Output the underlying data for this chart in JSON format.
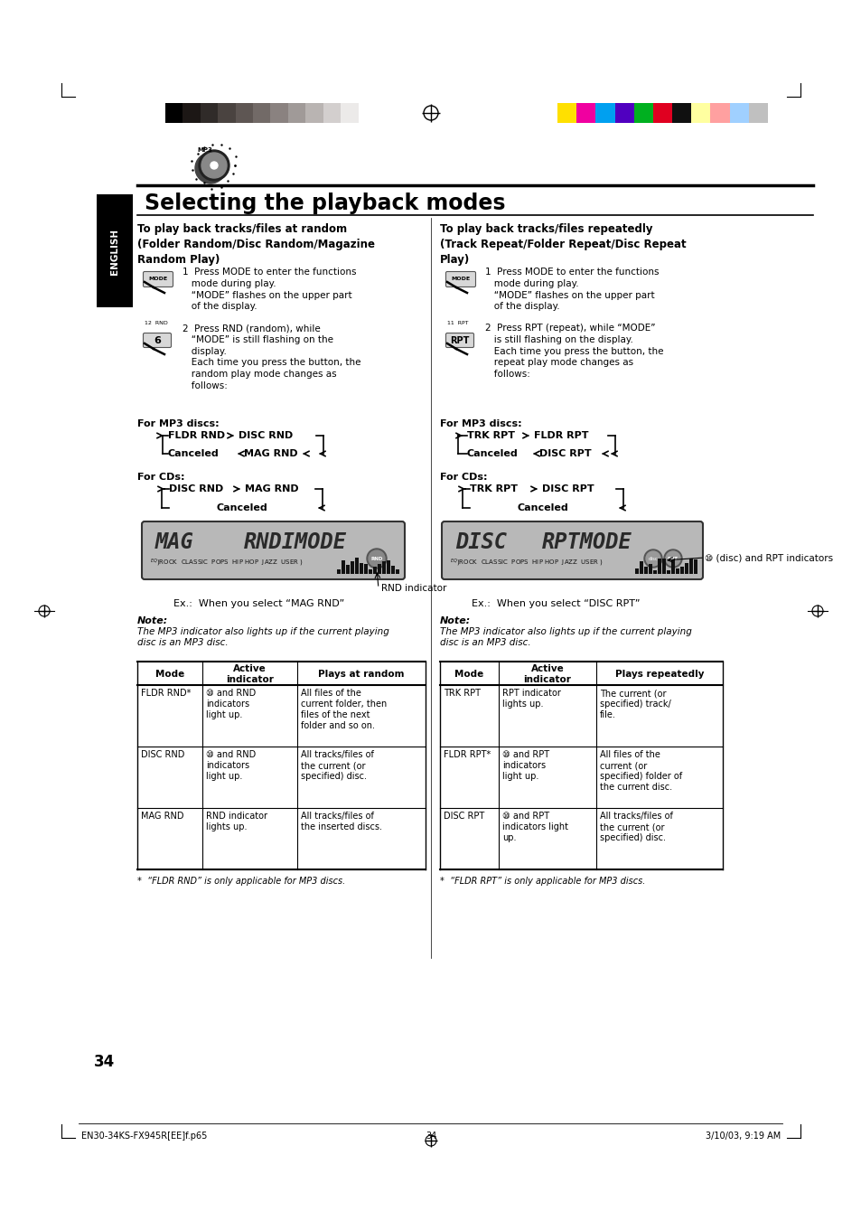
{
  "bg_color": "#ffffff",
  "page_number": "34",
  "title": "Selecting the playback modes",
  "left_section_title": "To play back tracks/files at random\n(Folder Random/Disc Random/Magazine\nRandom Play)",
  "right_section_title": "To play back tracks/files repeatedly\n(Track Repeat/Folder Repeat/Disc Repeat\nPlay)",
  "footer_left": "EN30-34KS-FX945R[EE]f.p65",
  "footer_center": "34",
  "footer_right": "3/10/03, 9:19 AM",
  "left_step1": "1  Press MODE to enter the functions\n   mode during play.\n   “MODE” flashes on the upper part\n   of the display.",
  "left_step2": "2  Press RND (random), while\n   “MODE” is still flashing on the\n   display.\n   Each time you press the button, the\n   random play mode changes as\n   follows:",
  "right_step1": "1  Press MODE to enter the functions\n   mode during play.\n   “MODE” flashes on the upper part\n   of the display.",
  "right_step2": "2  Press RPT (repeat), while “MODE”\n   is still flashing on the display.\n   Each time you press the button, the\n   repeat play mode changes as\n   follows:",
  "for_mp3_left": "For MP3 discs:",
  "for_cd_left": "For CDs:",
  "for_mp3_right": "For MP3 discs:",
  "for_cd_right": "For CDs:",
  "rnd_indicator_label": "RND indicator",
  "rnd_ex_label": "Ex.:  When you select “MAG RND”",
  "rpt_indicator_label": "⑩ (disc) and RPT indicators",
  "rpt_ex_label": "Ex.:  When you select “DISC RPT”",
  "note_text": "Note:",
  "note_body": "The MP3 indicator also lights up if the current playing\ndisc is an MP3 disc.",
  "left_table_headers": [
    "Mode",
    "Active\nindicator",
    "Plays at random"
  ],
  "left_table_rows": [
    [
      "FLDR RND*",
      "⑩ and RND\nindicators\nlight up.",
      "All files of the\ncurrent folder, then\nfiles of the next\nfolder and so on."
    ],
    [
      "DISC RND",
      "⑩ and RND\nindicators\nlight up.",
      "All tracks/files of\nthe current (or\nspecified) disc."
    ],
    [
      "MAG RND",
      "RND indicator\nlights up.",
      "All tracks/files of\nthe inserted discs."
    ]
  ],
  "right_table_headers": [
    "Mode",
    "Active\nindicator",
    "Plays repeatedly"
  ],
  "right_table_rows": [
    [
      "TRK RPT",
      "RPT indicator\nlights up.",
      "The current (or\nspecified) track/\nfile."
    ],
    [
      "FLDR RPT*",
      "⑩ and RPT\nindicators\nlight up.",
      "All files of the\ncurrent (or\nspecified) folder of\nthe current disc."
    ],
    [
      "DISC RPT",
      "⑩ and RPT\nindicators light\nup.",
      "All tracks/files of\nthe current (or\nspecified) disc."
    ]
  ],
  "left_footnote": "*  “FLDR RND” is only applicable for MP3 discs.",
  "right_footnote": "*  “FLDR RPT” is only applicable for MP3 discs.",
  "colors_bw": [
    "#000000",
    "#1c1715",
    "#302b29",
    "#4a4340",
    "#5e5653",
    "#726a67",
    "#8a8280",
    "#a09a98",
    "#b9b4b2",
    "#d3cfce",
    "#eceae9",
    "#ffffff"
  ],
  "colors_rgb": [
    "#ffe000",
    "#f000a0",
    "#00a0f0",
    "#5000c0",
    "#00b020",
    "#e00020",
    "#101010",
    "#ffffa0",
    "#ffa0a0",
    "#a0d0ff",
    "#c0c0c0"
  ]
}
